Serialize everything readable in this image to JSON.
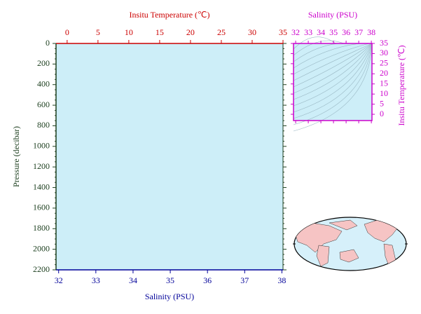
{
  "chart_data": [
    {
      "type": "profile",
      "x_label": "Salinity (PSU)",
      "x2_label": "Insitu Temperature (℃)",
      "y_label": "Pressure (decibar)",
      "xlim": [
        31.93,
        38.03
      ],
      "xticks": [
        32,
        33,
        34,
        35,
        36,
        37,
        38
      ],
      "x2lim": [
        -1.8,
        35
      ],
      "x2ticks": [
        0,
        5,
        10,
        15,
        20,
        25,
        30,
        35
      ],
      "ylim": [
        2200,
        0
      ],
      "yticks": [
        0,
        200,
        400,
        600,
        800,
        1000,
        1200,
        1400,
        1600,
        1800,
        2000,
        2200
      ],
      "background": "#cdeef8",
      "x_color": "#000099",
      "x2_color": "#cc0000",
      "y_color": "#1e4020"
    },
    {
      "type": "ts",
      "x_label": "Salinity (PSU)",
      "y_label": "Insitu Temperature (℃)",
      "xlim": [
        31.83,
        38.05
      ],
      "xticks": [
        32,
        33,
        34,
        35,
        36,
        37,
        38
      ],
      "ylim": [
        -3.1,
        35
      ],
      "yticks": [
        0,
        5,
        10,
        15,
        20,
        25,
        30,
        35
      ],
      "background": "#cdeef8",
      "color": "#cc00cc"
    }
  ]
}
